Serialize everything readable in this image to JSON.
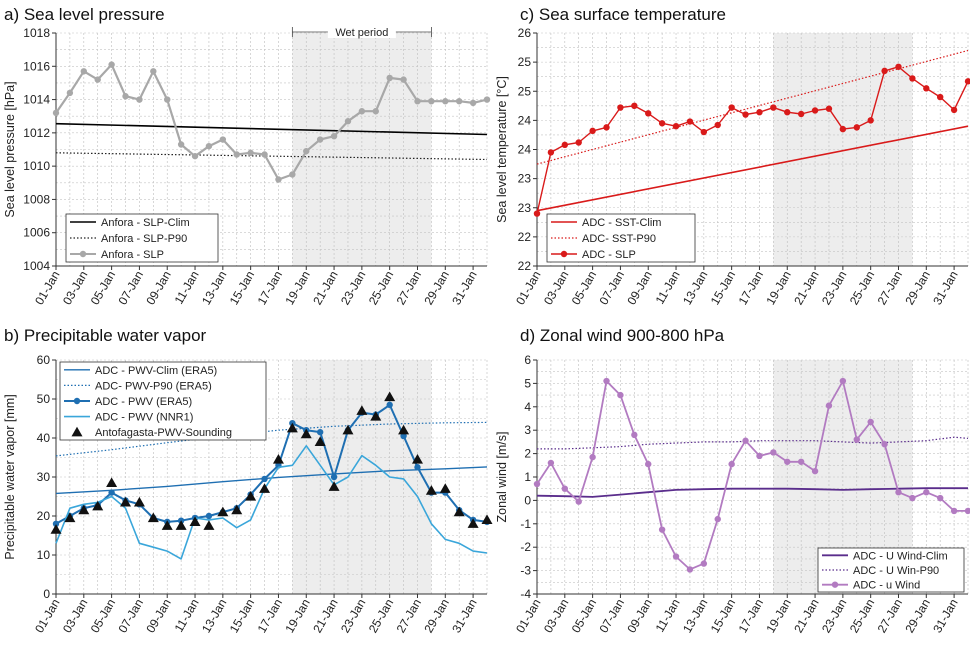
{
  "chart_data": [
    {
      "panel": "a",
      "type": "line",
      "title": "a) Sea level pressure",
      "ylabel": "Sea level pressure [hPa]",
      "xlabel": "",
      "ylim": [
        1004,
        1018
      ],
      "yticks": [
        1004,
        1006,
        1008,
        1010,
        1012,
        1014,
        1016,
        1018
      ],
      "x_day_range": [
        1,
        32
      ],
      "xtick_labels": [
        "01-Jan",
        "03-Jan",
        "05-Jan",
        "07-Jan",
        "09-Jan",
        "11-Jan",
        "13-Jan",
        "15-Jan",
        "17-Jan",
        "19-Jan",
        "21-Jan",
        "23-Jan",
        "25-Jan",
        "27-Jan",
        "29-Jan",
        "31-Jan"
      ],
      "annotation": "Wet period",
      "annotation_span": [
        18,
        28
      ],
      "grid": true,
      "legend_position": "bottom-left",
      "series": [
        {
          "name": "Anfora - SLP-Clim",
          "color": "#000000",
          "style": "solid",
          "width": 1.6,
          "markers": false,
          "x": [
            1,
            32
          ],
          "y": [
            1012.55,
            1011.9
          ]
        },
        {
          "name": "Anfora - SLP-P90",
          "color": "#222222",
          "style": "dotted",
          "width": 1.2,
          "markers": false,
          "x": [
            1,
            32
          ],
          "y": [
            1010.8,
            1010.4
          ]
        },
        {
          "name": "Anfora - SLP",
          "color": "#a8a8a8",
          "style": "solid",
          "width": 2.2,
          "markers": true,
          "x": [
            1,
            2,
            3,
            4,
            5,
            6,
            7,
            8,
            9,
            10,
            11,
            12,
            13,
            14,
            15,
            16,
            17,
            18,
            19,
            20,
            21,
            22,
            23,
            24,
            25,
            26,
            27,
            28,
            29,
            30,
            31,
            32
          ],
          "y": [
            1013.2,
            1014.4,
            1015.7,
            1015.2,
            1016.1,
            1014.2,
            1014.0,
            1015.7,
            1014.0,
            1011.3,
            1010.6,
            1011.2,
            1011.6,
            1010.7,
            1010.8,
            1010.7,
            1009.2,
            1009.5,
            1010.9,
            1011.6,
            1011.8,
            1012.7,
            1013.3,
            1013.3,
            1015.3,
            1015.2,
            1013.9,
            1013.9,
            1013.9,
            1013.9,
            1013.8,
            1014.0
          ]
        }
      ]
    },
    {
      "panel": "c",
      "type": "line",
      "title": "c) Sea surface temperature",
      "ylabel": "Sea level temperature [°C]",
      "xlabel": "",
      "ylim": [
        22,
        26
      ],
      "yticks": [
        22,
        22.5,
        23,
        23.5,
        24,
        24.5,
        25,
        25.5,
        26
      ],
      "ytick_labels": [
        "22",
        "22",
        "23",
        "23",
        "24",
        "24",
        "25",
        "25",
        "26"
      ],
      "x_day_range": [
        1,
        32
      ],
      "xtick_labels": [
        "01-Jan",
        "03-Jan",
        "05-Jan",
        "07-Jan",
        "09-Jan",
        "11-Jan",
        "13-Jan",
        "15-Jan",
        "17-Jan",
        "19-Jan",
        "21-Jan",
        "23-Jan",
        "25-Jan",
        "27-Jan",
        "29-Jan",
        "31-Jan"
      ],
      "grid": true,
      "legend_position": "bottom-left",
      "series": [
        {
          "name": "ADC - SST-Clim",
          "color": "#d91a1a",
          "style": "solid",
          "width": 1.6,
          "markers": false,
          "x": [
            1,
            32
          ],
          "y": [
            22.95,
            24.4
          ]
        },
        {
          "name": "ADC- SST-P90",
          "color": "#d91a1a",
          "style": "dotted",
          "width": 1.2,
          "markers": false,
          "x": [
            1,
            32
          ],
          "y": [
            23.75,
            25.7
          ]
        },
        {
          "name": "ADC - SLP",
          "color": "#d91a1a",
          "style": "solid",
          "width": 1.4,
          "markers": true,
          "x": [
            1,
            2,
            3,
            4,
            5,
            6,
            7,
            8,
            9,
            10,
            11,
            12,
            13,
            14,
            15,
            16,
            17,
            18,
            19,
            20,
            21,
            22,
            23,
            24,
            25,
            26,
            27,
            28,
            29,
            30,
            31,
            32
          ],
          "y": [
            22.9,
            23.95,
            24.08,
            24.12,
            24.32,
            24.38,
            24.72,
            24.75,
            24.62,
            24.45,
            24.4,
            24.48,
            24.3,
            24.42,
            24.72,
            24.6,
            24.64,
            24.72,
            24.64,
            24.61,
            24.67,
            24.7,
            24.35,
            24.38,
            24.5,
            25.35,
            25.42,
            25.22,
            25.05,
            24.9,
            24.68,
            25.17
          ]
        }
      ]
    },
    {
      "panel": "b",
      "type": "line",
      "title": "b) Precipitable water vapor",
      "ylabel": "Precipitable water vapor [mm]",
      "xlabel": "",
      "ylim": [
        0,
        60
      ],
      "yticks": [
        0,
        10,
        20,
        30,
        40,
        50,
        60
      ],
      "x_day_range": [
        1,
        32
      ],
      "xtick_labels": [
        "01-Jan",
        "03-Jan",
        "05-Jan",
        "07-Jan",
        "09-Jan",
        "11-Jan",
        "13-Jan",
        "15-Jan",
        "17-Jan",
        "19-Jan",
        "21-Jan",
        "23-Jan",
        "25-Jan",
        "27-Jan",
        "29-Jan",
        "31-Jan"
      ],
      "grid": true,
      "legend_position": "top-left",
      "series": [
        {
          "name": "ADC - PWV-Clim (ERA5)",
          "color": "#1f6fb2",
          "style": "solid",
          "width": 1.4,
          "markers": false,
          "x": [
            1,
            5,
            9,
            13,
            17,
            21,
            25,
            29,
            32
          ],
          "y": [
            25.8,
            26.6,
            27.6,
            28.8,
            29.9,
            30.8,
            31.6,
            32.1,
            32.6
          ]
        },
        {
          "name": "ADC- PWV-P90 (ERA5)",
          "color": "#1f6fb2",
          "style": "dotted",
          "width": 1.2,
          "markers": false,
          "x": [
            1,
            5,
            9,
            13,
            17,
            21,
            25,
            29,
            32
          ],
          "y": [
            35.4,
            37.0,
            38.8,
            40.5,
            42.0,
            43.0,
            43.6,
            43.9,
            44.0
          ]
        },
        {
          "name": "ADC - PWV (ERA5)",
          "color": "#1f6fb2",
          "style": "solid",
          "width": 2.0,
          "markers": true,
          "x": [
            1,
            2,
            3,
            4,
            5,
            6,
            7,
            8,
            9,
            10,
            11,
            12,
            13,
            14,
            15,
            16,
            17,
            18,
            19,
            20,
            21,
            22,
            23,
            24,
            25,
            26,
            27,
            28,
            29,
            30,
            31,
            32
          ],
          "y": [
            18.0,
            20.0,
            22.0,
            22.8,
            26.0,
            24.0,
            23.0,
            19.5,
            18.5,
            18.8,
            19.5,
            20.0,
            21.0,
            22.0,
            25.5,
            29.5,
            33.0,
            43.8,
            42.0,
            41.5,
            30.0,
            42.0,
            46.5,
            46.0,
            48.5,
            40.5,
            32.5,
            26.0,
            26.0,
            21.5,
            19.0,
            18.5
          ]
        },
        {
          "name": "ADC - PWV (NNR1)",
          "color": "#3aa6da",
          "style": "solid",
          "width": 1.6,
          "markers": false,
          "x": [
            1,
            2,
            3,
            4,
            5,
            6,
            7,
            8,
            9,
            10,
            11,
            12,
            13,
            14,
            15,
            16,
            17,
            18,
            19,
            20,
            21,
            22,
            23,
            24,
            25,
            26,
            27,
            28,
            29,
            30,
            31,
            32
          ],
          "y": [
            13.0,
            22.0,
            23.0,
            23.5,
            25.0,
            22.0,
            13.0,
            12.0,
            11.0,
            9.0,
            19.5,
            19.0,
            19.5,
            17.0,
            19.0,
            27.0,
            32.5,
            33.0,
            38.0,
            33.0,
            28.0,
            30.0,
            35.5,
            33.0,
            30.0,
            29.5,
            25.0,
            18.0,
            14.0,
            13.0,
            11.0,
            10.5
          ]
        },
        {
          "name": "Antofagasta-PWV-Sounding",
          "color": "#111111",
          "style": "none",
          "width": 0,
          "markers": "triangle",
          "x": [
            1,
            2,
            3,
            4,
            5,
            6,
            7,
            8,
            9,
            10,
            11,
            12,
            13,
            14,
            15,
            16,
            17,
            18,
            19,
            20,
            21,
            22,
            23,
            24,
            25,
            26,
            27,
            28,
            29,
            30,
            31,
            32
          ],
          "y": [
            16.5,
            19.5,
            21.5,
            22.5,
            28.5,
            23.5,
            23.5,
            19.5,
            17.5,
            17.5,
            18.5,
            17.5,
            21.0,
            21.5,
            25.0,
            27.0,
            34.5,
            42.5,
            41.0,
            39.0,
            27.5,
            42.0,
            47.0,
            45.5,
            50.5,
            42.0,
            34.5,
            26.5,
            27.0,
            21.0,
            18.0,
            19.0
          ]
        }
      ]
    },
    {
      "panel": "d",
      "type": "line",
      "title": "d) Zonal wind 900-800 hPa",
      "ylabel": "Zonal wind [m/s]",
      "xlabel": "",
      "ylim": [
        -4,
        6
      ],
      "yticks": [
        -4,
        -3,
        -2,
        -1,
        0,
        1,
        2,
        3,
        4,
        5,
        6
      ],
      "x_day_range": [
        1,
        32
      ],
      "xtick_labels": [
        "01-Jan",
        "03-Jan",
        "05-Jan",
        "07-Jan",
        "09-Jan",
        "11-Jan",
        "13-Jan",
        "15-Jan",
        "17-Jan",
        "19-Jan",
        "21-Jan",
        "23-Jan",
        "25-Jan",
        "27-Jan",
        "29-Jan",
        "31-Jan"
      ],
      "grid": true,
      "legend_position": "bottom-right",
      "series": [
        {
          "name": "ADC - U Wind-Clim",
          "color": "#5a2d8c",
          "style": "solid",
          "width": 1.8,
          "markers": false,
          "x": [
            1,
            3,
            5,
            7,
            9,
            11,
            13,
            15,
            17,
            19,
            21,
            23,
            25,
            27,
            29,
            31,
            32
          ],
          "y": [
            0.2,
            0.18,
            0.15,
            0.25,
            0.35,
            0.45,
            0.48,
            0.5,
            0.5,
            0.5,
            0.48,
            0.45,
            0.48,
            0.5,
            0.52,
            0.52,
            0.52
          ]
        },
        {
          "name": "ADC - U Win-P90",
          "color": "#5a2d8c",
          "style": "dotted",
          "width": 1.2,
          "markers": false,
          "x": [
            1,
            3,
            5,
            7,
            9,
            11,
            13,
            15,
            17,
            19,
            21,
            23,
            25,
            27,
            29,
            31,
            32
          ],
          "y": [
            2.2,
            2.2,
            2.25,
            2.3,
            2.4,
            2.45,
            2.5,
            2.5,
            2.55,
            2.55,
            2.55,
            2.5,
            2.45,
            2.5,
            2.55,
            2.7,
            2.65
          ]
        },
        {
          "name": "ADC - u Wind",
          "color": "#b27bc1",
          "style": "solid",
          "width": 1.8,
          "markers": true,
          "x": [
            1,
            2,
            3,
            4,
            5,
            6,
            7,
            8,
            9,
            10,
            11,
            12,
            13,
            14,
            15,
            16,
            17,
            18,
            19,
            20,
            21,
            22,
            23,
            24,
            25,
            26,
            27,
            28,
            29,
            30,
            31,
            32
          ],
          "y": [
            0.7,
            1.6,
            0.5,
            -0.05,
            1.85,
            5.1,
            4.5,
            2.8,
            1.55,
            -1.25,
            -2.4,
            -2.95,
            -2.7,
            -0.8,
            1.55,
            2.55,
            1.9,
            2.05,
            1.65,
            1.65,
            1.25,
            4.05,
            5.1,
            2.6,
            3.35,
            2.4,
            0.35,
            0.1,
            0.35,
            0.1,
            -0.45,
            -0.45
          ]
        }
      ]
    }
  ]
}
